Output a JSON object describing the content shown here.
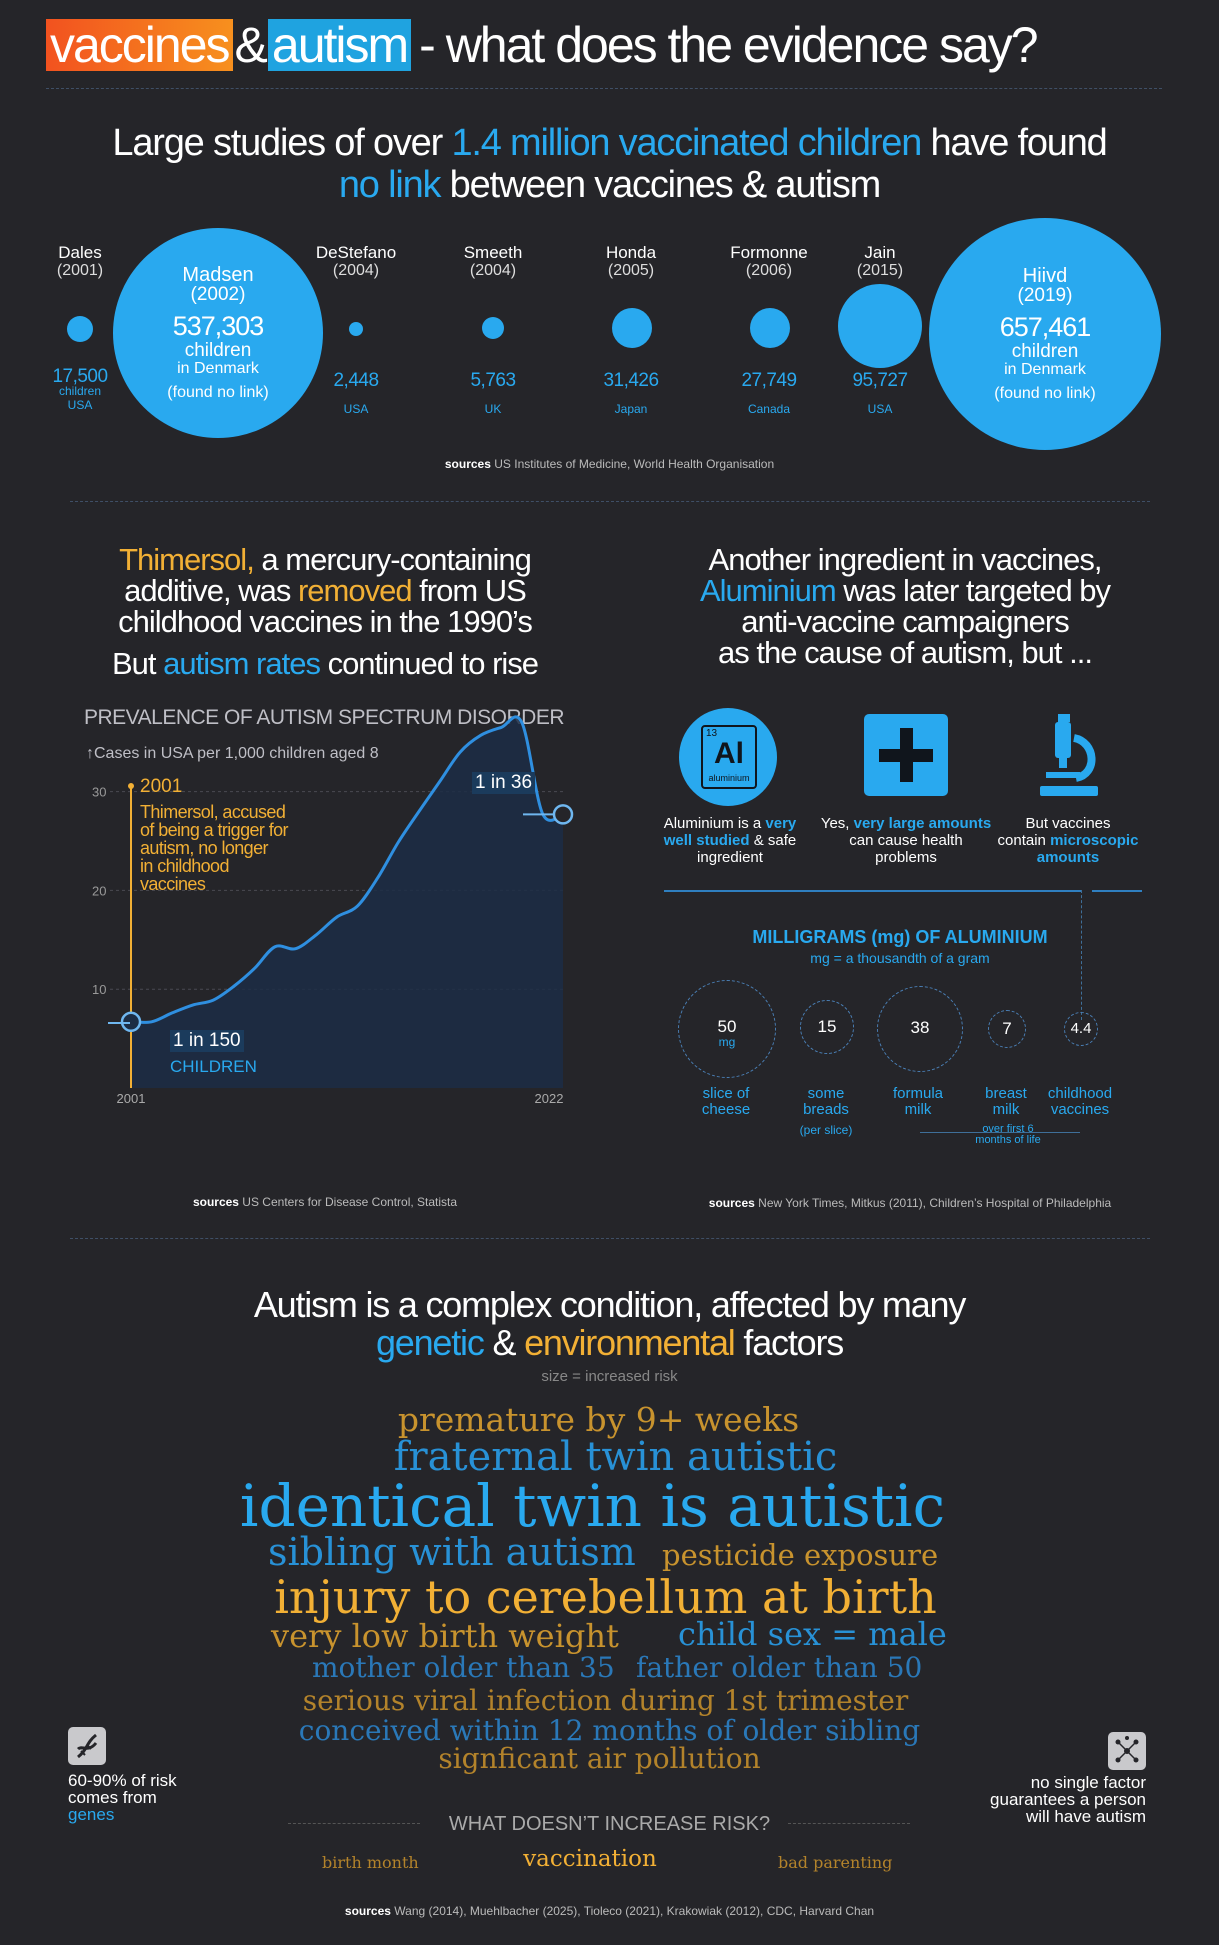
{
  "header": {
    "word1": "vaccines",
    "amp": "&",
    "word2": "autism",
    "rest": "- what does the evidence say?"
  },
  "studies_section": {
    "title_a": "Large studies of over ",
    "title_hl": "1.4 million vaccinated children",
    "title_b": " have found",
    "title_hl2": "no link",
    "title_c": " between vaccines & autism",
    "studies": [
      {
        "name": "Dales",
        "year": "(2001)",
        "count": "17,500",
        "unit": "children",
        "country": "USA"
      },
      {
        "name": "Madsen",
        "year": "(2002)",
        "count": "537,303",
        "unit": "children",
        "country": "in Denmark",
        "note": "(found no link)"
      },
      {
        "name": "DeStefano",
        "year": "(2004)",
        "count": "2,448",
        "country": "USA"
      },
      {
        "name": "Smeeth",
        "year": "(2004)",
        "count": "5,763",
        "country": "UK"
      },
      {
        "name": "Honda",
        "year": "(2005)",
        "count": "31,426",
        "country": "Japan"
      },
      {
        "name": "Formonne",
        "year": "(2006)",
        "count": "27,749",
        "country": "Canada"
      },
      {
        "name": "Jain",
        "year": "(2015)",
        "count": "95,727",
        "country": "USA"
      },
      {
        "name": "Hiivd",
        "year": "(2019)",
        "count": "657,461",
        "unit": "children",
        "country": "in Denmark",
        "note": "(found no link)"
      }
    ],
    "sources_label": "sources",
    "sources_text": " US Institutes of Medicine, World Health Organisation"
  },
  "thimersol": {
    "l1_hl": "Thimersol,",
    "l1": " a mercury-containing",
    "l2a": "additive, was ",
    "l2_hl": "removed",
    "l2b": " from US",
    "l3": "childhood vaccines in the 1990’s",
    "l4a": "But ",
    "l4_hl": "autism rates",
    "l4b": " continued to rise"
  },
  "chart_data": {
    "type": "line",
    "title": "PREVALENCE OF AUTISM SPECTRUM DISORDER",
    "ylabel": "Cases in USA per 1,000 children aged 8",
    "x": [
      2001,
      2002,
      2003,
      2004,
      2005,
      2006,
      2007,
      2008,
      2009,
      2010,
      2011,
      2012,
      2013,
      2014,
      2015,
      2016,
      2017,
      2018,
      2019,
      2020,
      2021,
      2022
    ],
    "values": [
      6.7,
      6.7,
      7.6,
      8.4,
      8.9,
      10.3,
      12.1,
      14.3,
      14.1,
      15.5,
      17.3,
      18.4,
      21.3,
      24.9,
      28.0,
      31.0,
      34.0,
      35.7,
      36.5,
      37.0,
      27.8,
      27.7
    ],
    "ylim": [
      0,
      33
    ],
    "xlim": [
      2001,
      2022
    ],
    "yticks": [
      10,
      20,
      30
    ],
    "xtick_labels": [
      "2001",
      "2022"
    ],
    "annotation_year": "2001",
    "annotation_lines": [
      "Thimersol, accused",
      "of being a trigger for",
      "autism, no longer",
      "in childhood",
      "vaccines"
    ],
    "start_label": "1 in 150",
    "start_label2": "CHILDREN",
    "end_label": "1 in 36"
  },
  "aluminium": {
    "l1": "Another ingredient in vaccines,",
    "l2_hl": "Aluminium",
    "l2": " was later targeted by",
    "l3": "anti-vaccine campaigners",
    "l4": "as the cause of autism, but ...",
    "element_number": "13",
    "element_symbol": "Al",
    "element_name": "aluminium",
    "col1": [
      "Aluminium is a ",
      "very",
      "well studied",
      " & safe",
      "ingredient"
    ],
    "col2": [
      "Yes, ",
      "very large amounts",
      "can cause health",
      "problems"
    ],
    "col3": [
      "But vaccines",
      "contain ",
      "microscopic",
      "amounts"
    ],
    "mg_title": "MILLIGRAMS (mg) OF ALUMINIUM",
    "mg_sub": "mg = a thousandth of a gram",
    "items": [
      {
        "value": "50",
        "unit": "mg",
        "label": "slice of",
        "label2": "cheese"
      },
      {
        "value": "15",
        "label": "some",
        "label2": "breads",
        "note": "(per slice)"
      },
      {
        "value": "38",
        "label": "formula",
        "label2": "milk"
      },
      {
        "value": "7",
        "label": "breast",
        "label2": "milk"
      },
      {
        "value": "4.4",
        "label": "childhood",
        "label2": "vaccines"
      }
    ],
    "breast_note": "over first 6",
    "breast_note2": "months of life"
  },
  "sources_left": {
    "label": "sources",
    "text": " US Centers for Disease Control, Statista"
  },
  "sources_right": {
    "label": "sources",
    "text": " New York Times,  Mitkus (2011),  Children’s Hospital of Philadelphia"
  },
  "factors": {
    "l1": "Autism is a complex condition, affected by many",
    "genetic": "genetic",
    "amp": " & ",
    "env": "environmental",
    "tail": " factors",
    "note": "size = increased risk",
    "words": [
      {
        "text": "premature by 9+ weeks"
      },
      {
        "text": "fraternal twin autistic"
      },
      {
        "text": "identical twin is autistic"
      },
      {
        "text": "sibling with autism"
      },
      {
        "text": "pesticide exposure"
      },
      {
        "text": "injury to cerebellum at birth"
      },
      {
        "text": "very low birth weight"
      },
      {
        "text": "child sex = male"
      },
      {
        "text": "mother older than 35"
      },
      {
        "text": "father older than 50"
      },
      {
        "text": "serious viral infection during 1st trimester"
      },
      {
        "text": "conceived within 12 months of older sibling"
      },
      {
        "text": "signficant air pollution"
      }
    ],
    "left_note": [
      "60-90% of risk",
      "comes from",
      "genes"
    ],
    "right_note": [
      "no single factor",
      "guarantees a person",
      "will have autism"
    ],
    "doesnt_title": "WHAT DOESN’T INCREASE RISK?",
    "doesnt": [
      "birth month",
      "vaccination",
      "bad parenting"
    ],
    "sources_label": "sources",
    "sources_text": " Wang (2014), Muehlbacher (2025), Tioleco (2021), Krakowiak (2012), CDC, Harvard Chan"
  },
  "colors": {
    "bg": "#252529",
    "blue": "#29a9ef",
    "yellow": "#f2b035",
    "orange": "#f2521f"
  }
}
